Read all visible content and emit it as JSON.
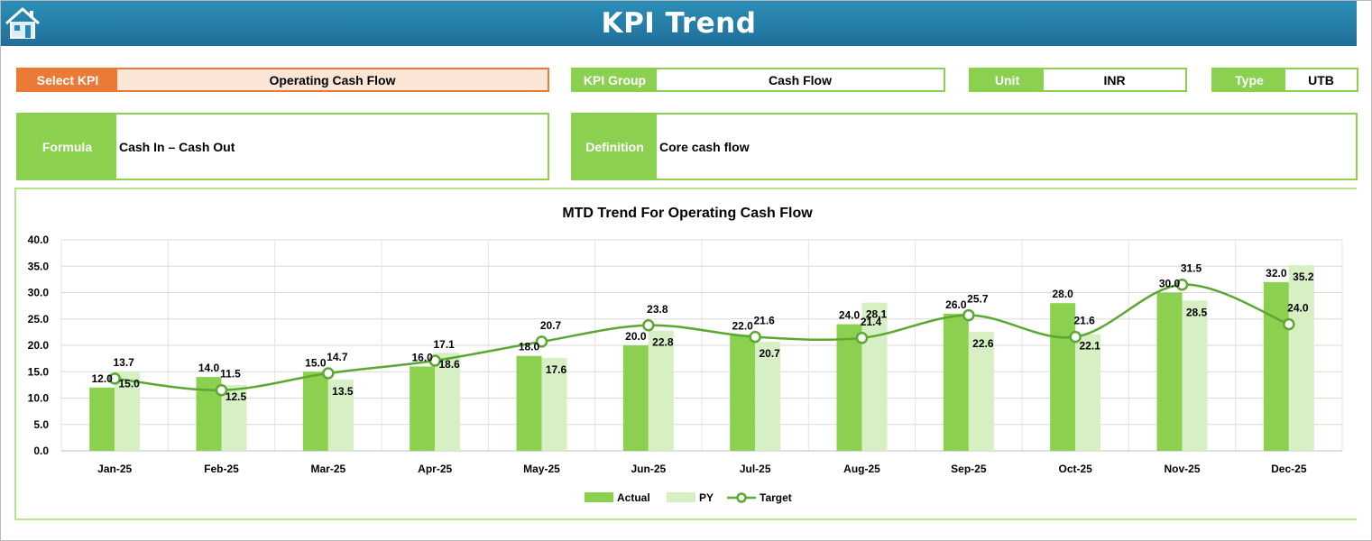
{
  "header": {
    "title": "KPI Trend",
    "home_icon": "home-icon"
  },
  "fields": {
    "select_kpi": {
      "label": "Select KPI",
      "value": "Operating Cash Flow"
    },
    "kpi_group": {
      "label": "KPI Group",
      "value": "Cash Flow"
    },
    "unit": {
      "label": "Unit",
      "value": "INR"
    },
    "type": {
      "label": "Type",
      "value": "UTB"
    },
    "formula": {
      "label": "Formula",
      "value": "Cash In – Cash Out"
    },
    "definition": {
      "label": "Definition",
      "value": "Core cash flow"
    }
  },
  "colors": {
    "header": "#2180ab",
    "accent_green": "#8cd050",
    "accent_orange": "#ea7a36",
    "actual": "#8cd050",
    "py": "#d6f0c4",
    "target": "#5aa832"
  },
  "chart_data": {
    "type": "bar",
    "title": "MTD Trend For Operating Cash Flow",
    "categories": [
      "Jan-25",
      "Feb-25",
      "Mar-25",
      "Apr-25",
      "May-25",
      "Jun-25",
      "Jul-25",
      "Aug-25",
      "Sep-25",
      "Oct-25",
      "Nov-25",
      "Dec-25"
    ],
    "series": [
      {
        "name": "Actual",
        "type": "bar",
        "values": [
          12.0,
          14.0,
          15.0,
          16.0,
          18.0,
          20.0,
          22.0,
          24.0,
          26.0,
          28.0,
          30.0,
          32.0
        ]
      },
      {
        "name": "PY",
        "type": "bar",
        "values": [
          15.0,
          12.5,
          13.5,
          18.6,
          17.6,
          22.8,
          20.7,
          28.1,
          22.6,
          22.1,
          28.5,
          35.2
        ]
      },
      {
        "name": "Target",
        "type": "line",
        "values": [
          13.7,
          11.5,
          14.7,
          17.1,
          20.7,
          23.8,
          21.6,
          21.4,
          25.7,
          21.6,
          31.5,
          24.0
        ]
      }
    ],
    "ylim": [
      0,
      40
    ],
    "yticks": [
      "0.0",
      "5.0",
      "10.0",
      "15.0",
      "20.0",
      "25.0",
      "30.0",
      "35.0",
      "40.0"
    ],
    "grid": true,
    "legend_position": "bottom"
  }
}
